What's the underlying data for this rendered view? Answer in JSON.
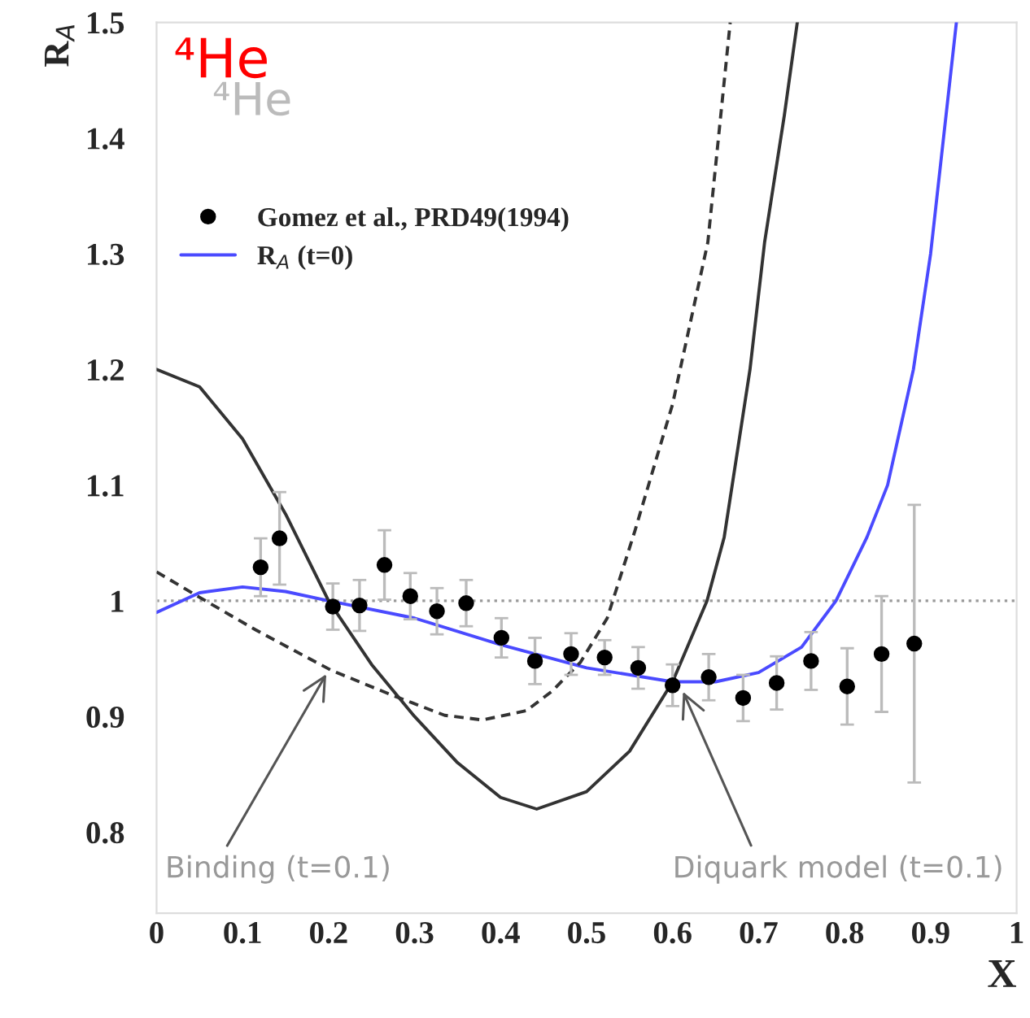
{
  "chart_data": {
    "type": "line",
    "xlabel": "X",
    "ylabel": "R$_{A}$",
    "xlim": [
      0,
      1
    ],
    "ylim": [
      0.73,
      1.5
    ],
    "xticks": [
      0,
      0.1,
      0.2,
      0.3,
      0.4,
      0.5,
      0.6,
      0.7,
      0.8,
      0.9,
      1
    ],
    "yticks": [
      0.8,
      0.9,
      1,
      1.1,
      1.2,
      1.3,
      1.4,
      1.5
    ],
    "grid": false,
    "legend": "top left",
    "ref_lines": [
      {
        "axis": "y",
        "value": 1,
        "line_style": "dotted",
        "color": "#999999"
      }
    ],
    "series": [
      {
        "name": "Gomez et al., PRD49(1994)",
        "type": "scatter",
        "color": "#000000",
        "marker": "circle",
        "x": [
          0.121,
          0.143,
          0.205,
          0.236,
          0.265,
          0.295,
          0.326,
          0.36,
          0.401,
          0.44,
          0.482,
          0.521,
          0.56,
          0.6,
          0.642,
          0.682,
          0.721,
          0.761,
          0.803,
          0.843,
          0.881
        ],
        "values": [
          1.029,
          1.054,
          0.995,
          0.996,
          1.031,
          1.004,
          0.991,
          0.998,
          0.968,
          0.948,
          0.954,
          0.951,
          0.942,
          0.927,
          0.934,
          0.916,
          0.929,
          0.948,
          0.926,
          0.954,
          0.963
        ],
        "errors": [
          0.025,
          0.04,
          0.02,
          0.022,
          0.03,
          0.02,
          0.02,
          0.02,
          0.017,
          0.02,
          0.018,
          0.015,
          0.018,
          0.018,
          0.02,
          0.02,
          0.023,
          0.025,
          0.033,
          0.05,
          0.12
        ]
      },
      {
        "name": "R$_{A}$ (t=0)",
        "color": "#4a4aff",
        "line_style": "solid",
        "x": [
          0,
          0.05,
          0.1,
          0.15,
          0.2,
          0.3,
          0.4,
          0.5,
          0.6,
          0.65,
          0.7,
          0.75,
          0.79,
          0.826,
          0.85,
          0.88,
          0.9,
          0.915,
          0.93
        ],
        "values": [
          0.99,
          1.007,
          1.012,
          1.008,
          1.0,
          0.985,
          0.962,
          0.942,
          0.93,
          0.93,
          0.938,
          0.96,
          1.0,
          1.055,
          1.1,
          1.2,
          1.3,
          1.4,
          1.5
        ]
      },
      {
        "color": "#333333",
        "line_style": "solid",
        "x": [
          0,
          0.05,
          0.1,
          0.15,
          0.2,
          0.25,
          0.3,
          0.35,
          0.4,
          0.442,
          0.5,
          0.55,
          0.6,
          0.64,
          0.66,
          0.69,
          0.707,
          0.73,
          0.745
        ],
        "values": [
          1.2,
          1.185,
          1.14,
          1.075,
          1.0,
          0.945,
          0.9,
          0.86,
          0.83,
          0.82,
          0.835,
          0.87,
          0.93,
          1.0,
          1.055,
          1.2,
          1.31,
          1.42,
          1.5
        ]
      },
      {
        "color": "#333333",
        "line_style": "dashed",
        "x": [
          0,
          0.05,
          0.115,
          0.16,
          0.203,
          0.272,
          0.335,
          0.379,
          0.43,
          0.46,
          0.493,
          0.524,
          0.556,
          0.6,
          0.641,
          0.667
        ],
        "values": [
          1.025,
          1.003,
          0.975,
          0.957,
          0.94,
          0.919,
          0.901,
          0.897,
          0.905,
          0.922,
          0.947,
          0.985,
          1.06,
          1.17,
          1.31,
          1.5
        ]
      }
    ],
    "annotations": [
      "⁴He",
      "⁴He",
      {
        "text": "Binding (t=0.1)",
        "x": 0.2,
        "y": 0.94
      },
      {
        "text": "Diquark model (t=0.1)",
        "x": 0.61,
        "y": 0.925
      }
    ]
  }
}
